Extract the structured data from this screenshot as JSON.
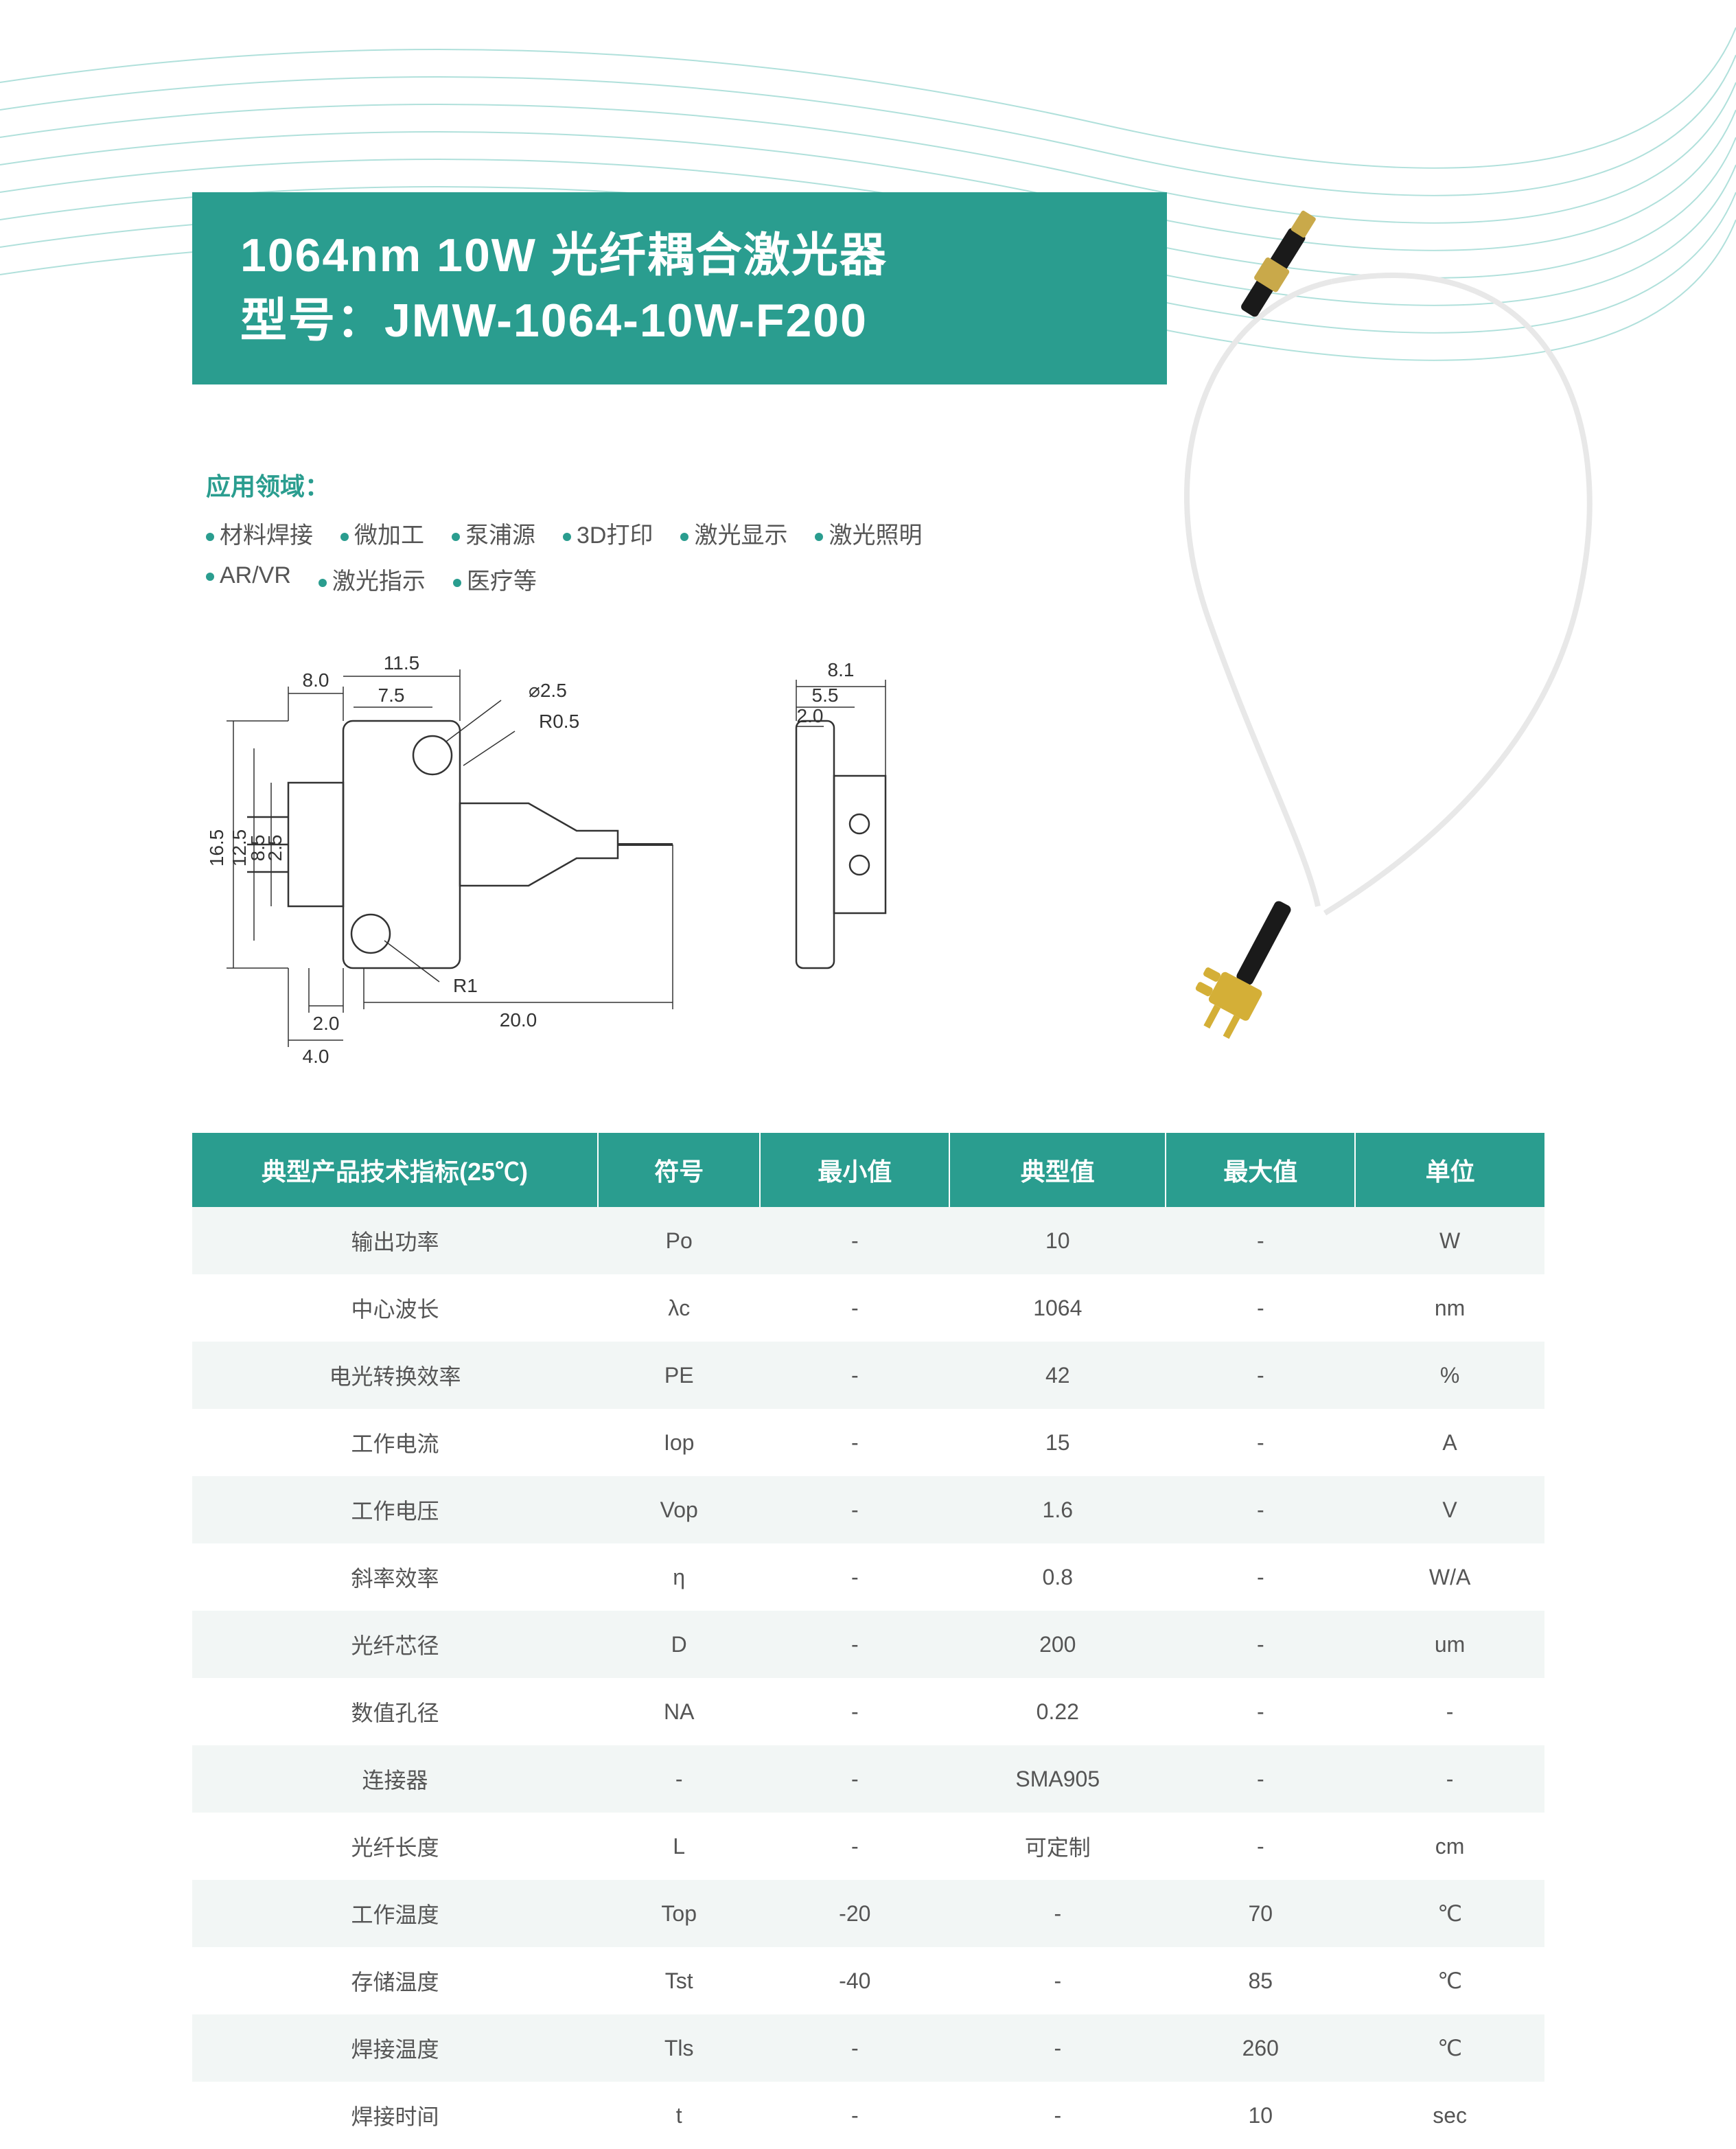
{
  "colors": {
    "teal": "#2a9d8f",
    "teal_dark": "#1f8a7d",
    "line": "#7ec8c0",
    "text_gray": "#555555",
    "row_alt": "#f2f6f5",
    "white": "#ffffff"
  },
  "title": {
    "line1": "1064nm 10W 光纤耦合激光器",
    "line2": "型号：JMW-1064-10W-F200"
  },
  "applications": {
    "header": "应用领域：",
    "items": [
      "材料焊接",
      "微加工",
      "泵浦源",
      "3D打印",
      "激光显示",
      "激光照明",
      "AR/VR",
      "激光指示",
      "医疗等"
    ]
  },
  "diagram": {
    "front": {
      "dims": {
        "w_total": "20.0",
        "flange_w1": "8.0",
        "flange_w2": "11.5",
        "inner_w": "7.5",
        "hole_dia": "⌀2.5",
        "fillet": "R0.5",
        "r1": "R1",
        "h_total": "16.5",
        "h_inner1": "12.5",
        "h_inner2": "8.5",
        "h_inner3": "2.5",
        "off1": "2.0",
        "off2": "4.0"
      }
    },
    "side": {
      "dims": {
        "w": "8.1",
        "w2": "5.5",
        "w3": "2.0"
      }
    }
  },
  "table": {
    "headers": [
      "典型产品技术指标(25℃)",
      "符号",
      "最小值",
      "典型值",
      "最大值",
      "单位"
    ],
    "rows": [
      [
        "输出功率",
        "Po",
        "-",
        "10",
        "-",
        "W"
      ],
      [
        "中心波长",
        "λc",
        "-",
        "1064",
        "-",
        "nm"
      ],
      [
        "电光转换效率",
        "PE",
        "-",
        "42",
        "-",
        "%"
      ],
      [
        "工作电流",
        "Iop",
        "-",
        "15",
        "-",
        "A"
      ],
      [
        "工作电压",
        "Vop",
        "-",
        "1.6",
        "-",
        "V"
      ],
      [
        "斜率效率",
        "η",
        "-",
        "0.8",
        "-",
        "W/A"
      ],
      [
        "光纤芯径",
        "D",
        "-",
        "200",
        "-",
        "um"
      ],
      [
        "数值孔径",
        "NA",
        "-",
        "0.22",
        "-",
        "-"
      ],
      [
        "连接器",
        "-",
        "-",
        "SMA905",
        "-",
        "-"
      ],
      [
        "光纤长度",
        "L",
        "-",
        "可定制",
        "-",
        "cm"
      ],
      [
        "工作温度",
        "Top",
        "-20",
        "-",
        "70",
        "℃"
      ],
      [
        "存储温度",
        "Tst",
        "-40",
        "-",
        "85",
        "℃"
      ],
      [
        "焊接温度",
        "Tls",
        "-",
        "-",
        "260",
        "℃"
      ],
      [
        "焊接时间",
        "t",
        "-",
        "-",
        "10",
        "sec"
      ]
    ]
  }
}
